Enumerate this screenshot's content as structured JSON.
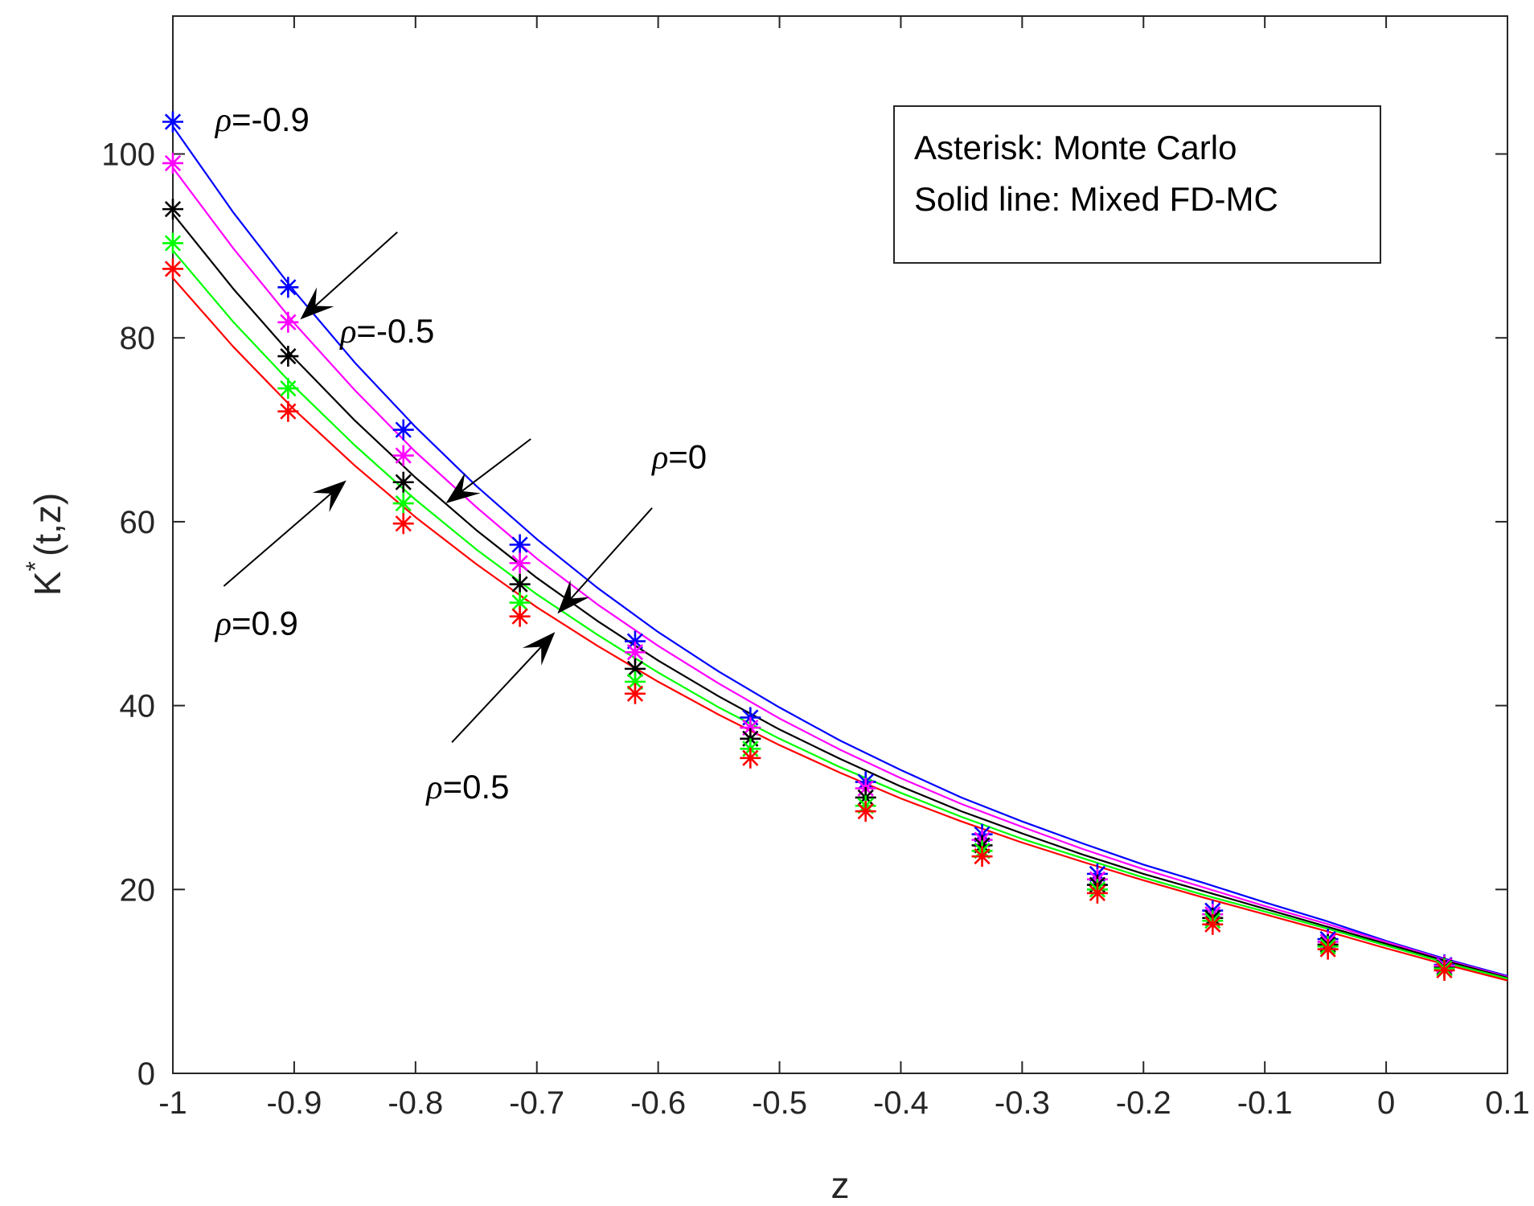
{
  "chart_data": {
    "type": "line",
    "title": "",
    "xlabel": "z",
    "ylabel": "K",
    "ylabel_sup": "*",
    "ylabel_rest": "(t,z)",
    "xlim": [
      -1,
      0.1
    ],
    "ylim": [
      0,
      115
    ],
    "xticks": [
      -1,
      -0.9,
      -0.8,
      -0.7,
      -0.6,
      -0.5,
      -0.4,
      -0.3,
      -0.2,
      -0.1,
      0,
      0.1
    ],
    "xtick_labels": [
      "-1",
      "-0.9",
      "-0.8",
      "-0.7",
      "-0.6",
      "-0.5",
      "-0.4",
      "-0.3",
      "-0.2",
      "-0.1",
      "0",
      "0.1"
    ],
    "yticks": [
      0,
      20,
      40,
      60,
      80,
      100
    ],
    "ytick_labels": [
      "0",
      "20",
      "40",
      "60",
      "80",
      "100"
    ],
    "grid": false,
    "legend_box": {
      "position": "top-right",
      "lines": [
        "Asterisk: Monte Carlo",
        "Solid line: Mixed FD-MC"
      ]
    },
    "marker_x": [
      -1.0,
      -0.905,
      -0.81,
      -0.714,
      -0.619,
      -0.524,
      -0.429,
      -0.333,
      -0.238,
      -0.143,
      -0.048,
      0.048
    ],
    "series": [
      {
        "name": "ρ=-0.9",
        "color": "#0000ff",
        "monte_carlo": [
          103.5,
          85.5,
          70.0,
          57.5,
          47.0,
          38.7,
          31.7,
          26.0,
          21.7,
          17.7,
          14.6,
          11.8
        ],
        "curve_x": [
          -1.0,
          -0.95,
          -0.9,
          -0.85,
          -0.8,
          -0.75,
          -0.7,
          -0.65,
          -0.6,
          -0.55,
          -0.5,
          -0.45,
          -0.4,
          -0.35,
          -0.3,
          -0.25,
          -0.2,
          -0.15,
          -0.1,
          -0.05,
          0.0,
          0.05,
          0.1
        ],
        "curve_y": [
          103.0,
          93.6,
          85.1,
          77.3,
          70.3,
          63.9,
          58.1,
          52.8,
          48.0,
          43.7,
          39.8,
          36.2,
          33.0,
          30.0,
          27.4,
          25.0,
          22.7,
          20.7,
          18.6,
          16.6,
          14.4,
          12.4,
          10.6
        ]
      },
      {
        "name": "ρ=-0.5",
        "color": "#ff00ff",
        "monte_carlo": [
          99.0,
          81.7,
          67.2,
          55.5,
          45.8,
          37.6,
          31.0,
          25.4,
          21.1,
          17.3,
          14.3,
          11.7
        ],
        "curve_x": [
          -1.0,
          -0.95,
          -0.9,
          -0.85,
          -0.8,
          -0.75,
          -0.7,
          -0.65,
          -0.6,
          -0.55,
          -0.5,
          -0.45,
          -0.4,
          -0.35,
          -0.3,
          -0.25,
          -0.2,
          -0.15,
          -0.1,
          -0.05,
          0.0,
          0.05,
          0.1
        ],
        "curve_y": [
          98.5,
          89.7,
          81.6,
          74.3,
          67.6,
          61.6,
          56.0,
          51.0,
          46.5,
          42.4,
          38.6,
          35.2,
          32.1,
          29.3,
          26.8,
          24.4,
          22.2,
          20.2,
          18.2,
          16.3,
          14.3,
          12.3,
          10.5
        ]
      },
      {
        "name": "ρ=0",
        "color": "#000000",
        "monte_carlo": [
          94.0,
          78.0,
          64.3,
          53.2,
          44.0,
          36.4,
          30.0,
          24.8,
          20.5,
          16.9,
          14.0,
          11.5
        ],
        "curve_x": [
          -1.0,
          -0.95,
          -0.9,
          -0.85,
          -0.8,
          -0.75,
          -0.7,
          -0.65,
          -0.6,
          -0.55,
          -0.5,
          -0.45,
          -0.4,
          -0.35,
          -0.3,
          -0.25,
          -0.2,
          -0.15,
          -0.1,
          -0.05,
          0.0,
          0.05,
          0.1
        ],
        "curve_y": [
          93.5,
          85.3,
          77.8,
          71.0,
          64.8,
          59.1,
          53.9,
          49.2,
          44.9,
          41.0,
          37.4,
          34.2,
          31.2,
          28.5,
          26.1,
          23.8,
          21.7,
          19.8,
          17.9,
          16.0,
          14.1,
          12.2,
          10.4
        ]
      },
      {
        "name": "ρ=0.5",
        "color": "#00ff00",
        "monte_carlo": [
          90.3,
          74.5,
          62.0,
          51.2,
          42.6,
          35.3,
          29.1,
          24.2,
          20.0,
          16.6,
          13.8,
          11.4
        ],
        "curve_x": [
          -1.0,
          -0.95,
          -0.9,
          -0.85,
          -0.8,
          -0.75,
          -0.7,
          -0.65,
          -0.6,
          -0.55,
          -0.5,
          -0.45,
          -0.4,
          -0.35,
          -0.3,
          -0.25,
          -0.2,
          -0.15,
          -0.1,
          -0.05,
          0.0,
          0.05,
          0.1
        ],
        "curve_y": [
          89.5,
          81.7,
          74.7,
          68.3,
          62.4,
          57.0,
          52.1,
          47.7,
          43.6,
          39.8,
          36.4,
          33.3,
          30.5,
          27.9,
          25.5,
          23.4,
          21.3,
          19.4,
          17.6,
          15.8,
          13.9,
          12.0,
          10.3
        ]
      },
      {
        "name": "ρ=0.9",
        "color": "#ff0000",
        "monte_carlo": [
          87.5,
          72.0,
          59.8,
          49.7,
          41.3,
          34.3,
          28.5,
          23.6,
          19.6,
          16.2,
          13.5,
          11.2
        ],
        "curve_x": [
          -1.0,
          -0.95,
          -0.9,
          -0.85,
          -0.8,
          -0.75,
          -0.7,
          -0.65,
          -0.6,
          -0.55,
          -0.5,
          -0.45,
          -0.4,
          -0.35,
          -0.3,
          -0.25,
          -0.2,
          -0.15,
          -0.1,
          -0.05,
          0.0,
          0.05,
          0.1
        ],
        "curve_y": [
          86.5,
          79.0,
          72.2,
          66.1,
          60.5,
          55.4,
          50.7,
          46.5,
          42.6,
          39.0,
          35.7,
          32.7,
          29.9,
          27.4,
          25.1,
          23.0,
          21.0,
          19.1,
          17.3,
          15.5,
          13.6,
          11.8,
          10.1
        ]
      }
    ],
    "annotations": [
      {
        "symbol": "ρ",
        "text": "=-0.9",
        "label_at": [
          -0.965,
          102.5
        ],
        "arrow_from": [
          -0.815,
          91.5
        ],
        "arrow_to": [
          -0.895,
          82.0
        ]
      },
      {
        "symbol": "ρ",
        "text": "=-0.5",
        "label_at": [
          -0.862,
          79.5
        ],
        "arrow_from": [
          -0.705,
          69.0
        ],
        "arrow_to": [
          -0.775,
          62.0
        ]
      },
      {
        "symbol": "ρ",
        "text": "=0",
        "label_at": [
          -0.605,
          65.8
        ],
        "arrow_from": [
          -0.605,
          61.5
        ],
        "arrow_to": [
          -0.683,
          50.0
        ]
      },
      {
        "symbol": "ρ",
        "text": "=0.9",
        "label_at": [
          -0.965,
          47.7
        ],
        "arrow_from": [
          -0.958,
          53.0
        ],
        "arrow_to": [
          -0.857,
          64.5
        ]
      },
      {
        "symbol": "ρ",
        "text": "=0.5",
        "label_at": [
          -0.791,
          29.9
        ],
        "arrow_from": [
          -0.77,
          36.0
        ],
        "arrow_to": [
          -0.685,
          48.0
        ]
      }
    ]
  }
}
